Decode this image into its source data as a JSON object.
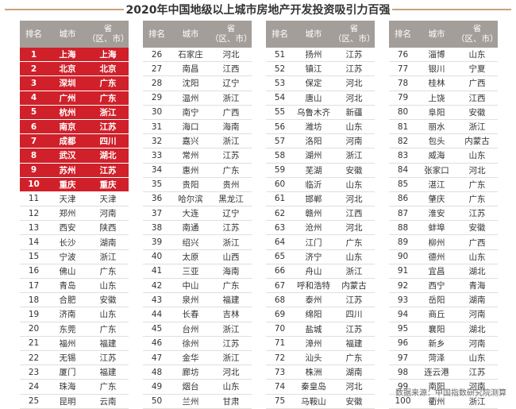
{
  "chart_data": {
    "type": "table",
    "title": "2020年中国地级以上城市房地产开发投资吸引力百强",
    "columns": [
      "排名",
      "城市",
      "省\n（区、市）"
    ],
    "rows": [
      {
        "rank": "1",
        "city": "上海",
        "province": "上海"
      },
      {
        "rank": "2",
        "city": "北京",
        "province": "北京"
      },
      {
        "rank": "3",
        "city": "深圳",
        "province": "广东"
      },
      {
        "rank": "4",
        "city": "广州",
        "province": "广东"
      },
      {
        "rank": "5",
        "city": "杭州",
        "province": "浙江"
      },
      {
        "rank": "6",
        "city": "南京",
        "province": "江苏"
      },
      {
        "rank": "7",
        "city": "成都",
        "province": "四川"
      },
      {
        "rank": "8",
        "city": "武汉",
        "province": "湖北"
      },
      {
        "rank": "9",
        "city": "苏州",
        "province": "江苏"
      },
      {
        "rank": "10",
        "city": "重庆",
        "province": "重庆"
      },
      {
        "rank": "11",
        "city": "天津",
        "province": "天津"
      },
      {
        "rank": "12",
        "city": "郑州",
        "province": "河南"
      },
      {
        "rank": "13",
        "city": "西安",
        "province": "陕西"
      },
      {
        "rank": "14",
        "city": "长沙",
        "province": "湖南"
      },
      {
        "rank": "15",
        "city": "宁波",
        "province": "浙江"
      },
      {
        "rank": "16",
        "city": "佛山",
        "province": "广东"
      },
      {
        "rank": "17",
        "city": "青岛",
        "province": "山东"
      },
      {
        "rank": "18",
        "city": "合肥",
        "province": "安徽"
      },
      {
        "rank": "19",
        "city": "济南",
        "province": "山东"
      },
      {
        "rank": "20",
        "city": "东莞",
        "province": "广东"
      },
      {
        "rank": "21",
        "city": "福州",
        "province": "福建"
      },
      {
        "rank": "22",
        "city": "无锡",
        "province": "江苏"
      },
      {
        "rank": "23",
        "city": "厦门",
        "province": "福建"
      },
      {
        "rank": "24",
        "city": "珠海",
        "province": "广东"
      },
      {
        "rank": "25",
        "city": "昆明",
        "province": "云南"
      },
      {
        "rank": "26",
        "city": "石家庄",
        "province": "河北"
      },
      {
        "rank": "27",
        "city": "南昌",
        "province": "江西"
      },
      {
        "rank": "28",
        "city": "沈阳",
        "province": "辽宁"
      },
      {
        "rank": "29",
        "city": "温州",
        "province": "浙江"
      },
      {
        "rank": "30",
        "city": "南宁",
        "province": "广西"
      },
      {
        "rank": "31",
        "city": "海口",
        "province": "海南"
      },
      {
        "rank": "32",
        "city": "嘉兴",
        "province": "浙江"
      },
      {
        "rank": "33",
        "city": "常州",
        "province": "江苏"
      },
      {
        "rank": "34",
        "city": "惠州",
        "province": "广东"
      },
      {
        "rank": "35",
        "city": "贵阳",
        "province": "贵州"
      },
      {
        "rank": "36",
        "city": "哈尔滨",
        "province": "黑龙江"
      },
      {
        "rank": "37",
        "city": "大连",
        "province": "辽宁"
      },
      {
        "rank": "38",
        "city": "南通",
        "province": "江苏"
      },
      {
        "rank": "39",
        "city": "绍兴",
        "province": "浙江"
      },
      {
        "rank": "40",
        "city": "太原",
        "province": "山西"
      },
      {
        "rank": "41",
        "city": "三亚",
        "province": "海南"
      },
      {
        "rank": "42",
        "city": "中山",
        "province": "广东"
      },
      {
        "rank": "43",
        "city": "泉州",
        "province": "福建"
      },
      {
        "rank": "44",
        "city": "长春",
        "province": "吉林"
      },
      {
        "rank": "45",
        "city": "台州",
        "province": "浙江"
      },
      {
        "rank": "46",
        "city": "徐州",
        "province": "江苏"
      },
      {
        "rank": "47",
        "city": "金华",
        "province": "浙江"
      },
      {
        "rank": "48",
        "city": "廊坊",
        "province": "河北"
      },
      {
        "rank": "49",
        "city": "烟台",
        "province": "山东"
      },
      {
        "rank": "50",
        "city": "兰州",
        "province": "甘肃"
      },
      {
        "rank": "51",
        "city": "扬州",
        "province": "江苏"
      },
      {
        "rank": "52",
        "city": "镇江",
        "province": "江苏"
      },
      {
        "rank": "53",
        "city": "保定",
        "province": "河北"
      },
      {
        "rank": "54",
        "city": "唐山",
        "province": "河北"
      },
      {
        "rank": "55",
        "city": "乌鲁木齐",
        "province": "新疆"
      },
      {
        "rank": "56",
        "city": "潍坊",
        "province": "山东"
      },
      {
        "rank": "57",
        "city": "洛阳",
        "province": "河南"
      },
      {
        "rank": "58",
        "city": "湖州",
        "province": "浙江"
      },
      {
        "rank": "59",
        "city": "芜湖",
        "province": "安徽"
      },
      {
        "rank": "60",
        "city": "临沂",
        "province": "山东"
      },
      {
        "rank": "61",
        "city": "邯郸",
        "province": "河北"
      },
      {
        "rank": "62",
        "city": "赣州",
        "province": "江西"
      },
      {
        "rank": "63",
        "city": "沧州",
        "province": "河北"
      },
      {
        "rank": "64",
        "city": "江门",
        "province": "广东"
      },
      {
        "rank": "65",
        "city": "济宁",
        "province": "山东"
      },
      {
        "rank": "66",
        "city": "舟山",
        "province": "浙江"
      },
      {
        "rank": "67",
        "city": "呼和浩特",
        "province": "内蒙古"
      },
      {
        "rank": "68",
        "city": "泰州",
        "province": "江苏"
      },
      {
        "rank": "69",
        "city": "绵阳",
        "province": "四川"
      },
      {
        "rank": "70",
        "city": "盐城",
        "province": "江苏"
      },
      {
        "rank": "71",
        "city": "漳州",
        "province": "福建"
      },
      {
        "rank": "72",
        "city": "汕头",
        "province": "广东"
      },
      {
        "rank": "73",
        "city": "株洲",
        "province": "湖南"
      },
      {
        "rank": "74",
        "city": "秦皇岛",
        "province": "河北"
      },
      {
        "rank": "75",
        "city": "马鞍山",
        "province": "安徽"
      },
      {
        "rank": "76",
        "city": "淄博",
        "province": "山东"
      },
      {
        "rank": "77",
        "city": "银川",
        "province": "宁夏"
      },
      {
        "rank": "78",
        "city": "桂林",
        "province": "广西"
      },
      {
        "rank": "79",
        "city": "上饶",
        "province": "江西"
      },
      {
        "rank": "80",
        "city": "阜阳",
        "province": "安徽"
      },
      {
        "rank": "81",
        "city": "丽水",
        "province": "浙江"
      },
      {
        "rank": "82",
        "city": "包头",
        "province": "内蒙古"
      },
      {
        "rank": "83",
        "city": "威海",
        "province": "山东"
      },
      {
        "rank": "84",
        "city": "张家口",
        "province": "河北"
      },
      {
        "rank": "85",
        "city": "湛江",
        "province": "广东"
      },
      {
        "rank": "86",
        "city": "肇庆",
        "province": "广东"
      },
      {
        "rank": "87",
        "city": "淮安",
        "province": "江苏"
      },
      {
        "rank": "88",
        "city": "蚌埠",
        "province": "安徽"
      },
      {
        "rank": "89",
        "city": "柳州",
        "province": "广西"
      },
      {
        "rank": "90",
        "city": "德州",
        "province": "山东"
      },
      {
        "rank": "91",
        "city": "宜昌",
        "province": "湖北"
      },
      {
        "rank": "92",
        "city": "西宁",
        "province": "青海"
      },
      {
        "rank": "93",
        "city": "岳阳",
        "province": "湖南"
      },
      {
        "rank": "94",
        "city": "商丘",
        "province": "河南"
      },
      {
        "rank": "95",
        "city": "襄阳",
        "province": "湖北"
      },
      {
        "rank": "96",
        "city": "新乡",
        "province": "河南"
      },
      {
        "rank": "97",
        "city": "菏泽",
        "province": "山东"
      },
      {
        "rank": "98",
        "city": "连云港",
        "province": "江苏"
      },
      {
        "rank": "99",
        "city": "南阳",
        "province": "河南"
      },
      {
        "rank": "100",
        "city": "衢州",
        "province": "浙江"
      }
    ],
    "highlight_top": 10
  },
  "source": "数据来源：中国指数研究院测算",
  "colors": {
    "header_bg": "#a39e99",
    "highlight_bg": "#d0202a",
    "title_rule": "#c8a27a"
  }
}
